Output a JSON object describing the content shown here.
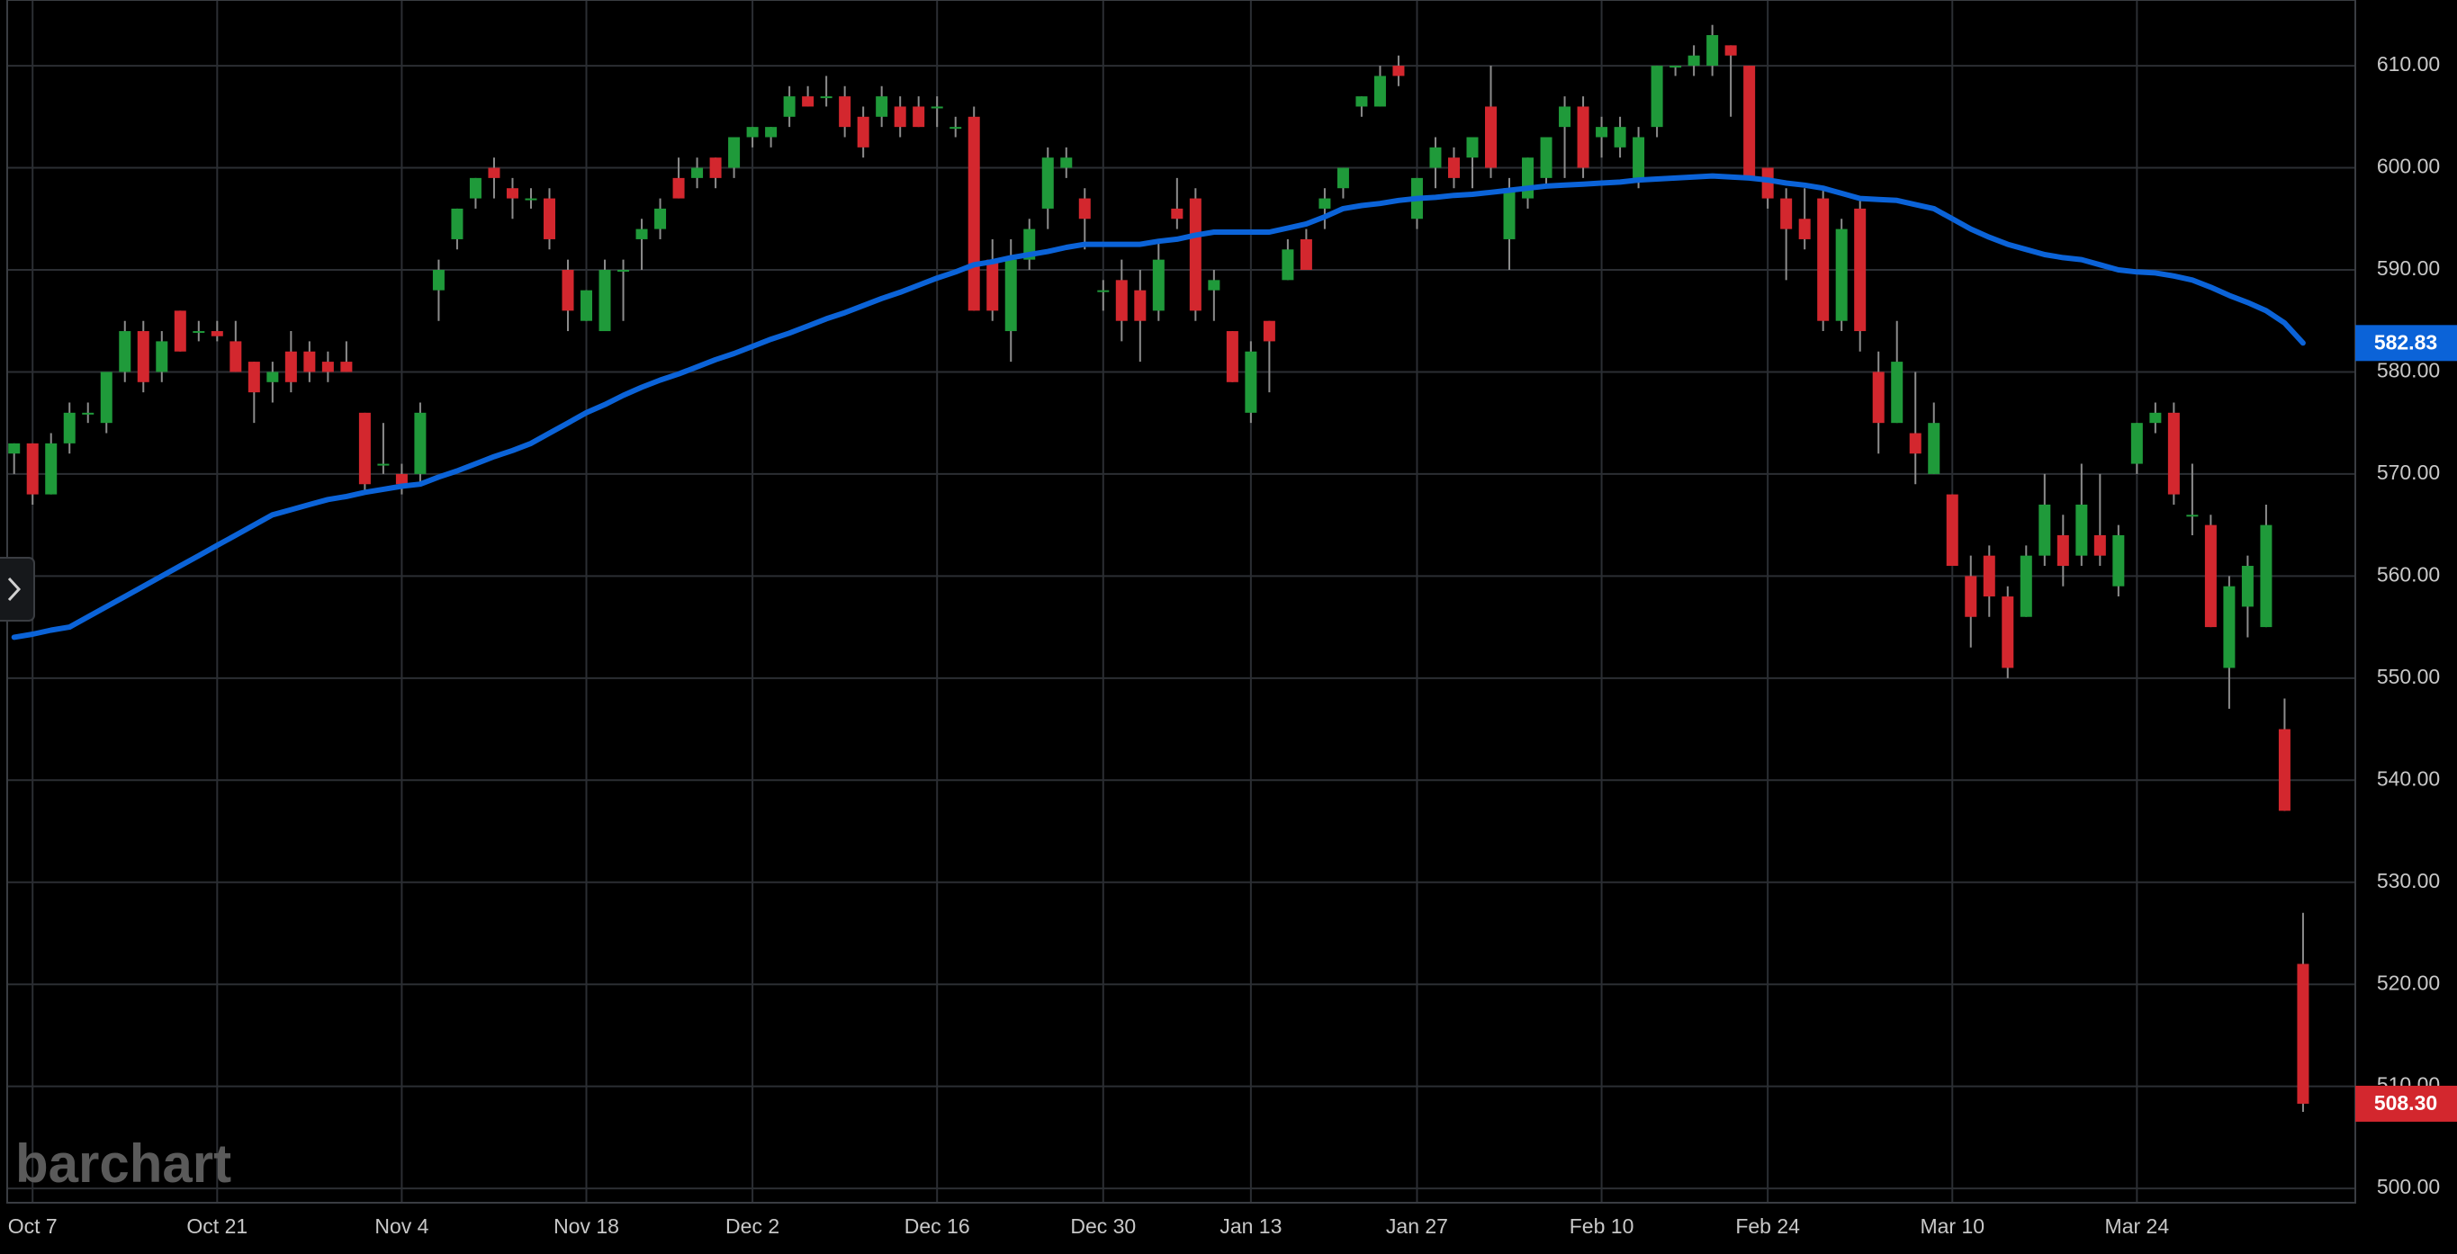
{
  "chart_data": {
    "type": "candlestick",
    "watermark": "barchart",
    "categories": [
      null,
      "Oct 7",
      null,
      null,
      null,
      null,
      null,
      null,
      null,
      null,
      null,
      "Oct 21",
      null,
      null,
      null,
      null,
      null,
      null,
      null,
      null,
      null,
      "Nov 4",
      null,
      null,
      null,
      null,
      null,
      null,
      null,
      null,
      null,
      "Nov 18",
      null,
      null,
      null,
      null,
      null,
      null,
      null,
      null,
      "Dec 2",
      null,
      null,
      null,
      null,
      null,
      null,
      null,
      null,
      null,
      "Dec 16",
      null,
      null,
      null,
      null,
      null,
      null,
      null,
      null,
      "Dec 30",
      null,
      null,
      null,
      null,
      null,
      null,
      null,
      "Jan 13",
      null,
      null,
      null,
      null,
      null,
      null,
      null,
      null,
      "Jan 27",
      null,
      null,
      null,
      null,
      null,
      null,
      null,
      null,
      null,
      "Feb 10",
      null,
      null,
      null,
      null,
      null,
      null,
      null,
      null,
      "Feb 24",
      null,
      null,
      null,
      null,
      null,
      null,
      null,
      null,
      null,
      "Mar 10",
      null,
      null,
      null,
      null,
      null,
      null,
      null,
      null,
      null,
      "Mar 24",
      null,
      null,
      null,
      null,
      null,
      null,
      null,
      null,
      null
    ],
    "ohlc": {
      "open": [
        572,
        573,
        568,
        573,
        576,
        575,
        580,
        584,
        580,
        586,
        584,
        584,
        583,
        581,
        579,
        582,
        582,
        581,
        581,
        576,
        571,
        570,
        570,
        588,
        593,
        597,
        600,
        598,
        597,
        597,
        590,
        585,
        584,
        590,
        593,
        594,
        599,
        599,
        601,
        600,
        603,
        603,
        605,
        607,
        607,
        607,
        605,
        605,
        606,
        606,
        606,
        604,
        605,
        591,
        584,
        591,
        596,
        600,
        597,
        588,
        589,
        588,
        586,
        596,
        597,
        588,
        584,
        576,
        585,
        589,
        593,
        596,
        598,
        606,
        606,
        610,
        595,
        600,
        601,
        601,
        606,
        593,
        597,
        599,
        604,
        606,
        603,
        602,
        599,
        604,
        610,
        610,
        610,
        612,
        610,
        600,
        597,
        595,
        597,
        585,
        596,
        580,
        575,
        574,
        570,
        568,
        560,
        562,
        558,
        556,
        562,
        564,
        562,
        564,
        559,
        571,
        575,
        576,
        566,
        565,
        551,
        557,
        555,
        545,
        522
      ],
      "high": [
        573,
        573,
        574,
        577,
        577,
        580,
        585,
        585,
        584,
        586,
        585,
        585,
        585,
        581,
        581,
        584,
        583,
        582,
        583,
        576,
        575,
        571,
        577,
        591,
        596,
        599,
        601,
        599,
        598,
        598,
        591,
        588,
        591,
        591,
        595,
        597,
        601,
        601,
        601,
        603,
        604,
        604,
        608,
        608,
        609,
        608,
        606,
        608,
        607,
        607,
        607,
        605,
        606,
        593,
        593,
        595,
        602,
        602,
        598,
        589,
        591,
        590,
        593,
        599,
        598,
        590,
        584,
        583,
        585,
        593,
        594,
        598,
        600,
        607,
        610,
        611,
        599,
        603,
        602,
        603,
        610,
        599,
        601,
        603,
        607,
        607,
        605,
        605,
        604,
        610,
        610,
        612,
        614,
        612,
        610,
        600,
        598,
        598,
        598,
        595,
        597,
        582,
        585,
        580,
        577,
        568,
        562,
        563,
        559,
        563,
        570,
        566,
        571,
        570,
        565,
        575,
        577,
        577,
        571,
        566,
        560,
        562,
        567,
        548,
        527
      ],
      "low": [
        570,
        567,
        568,
        572,
        575,
        574,
        579,
        578,
        579,
        582,
        583,
        583,
        580,
        575,
        577,
        578,
        579,
        579,
        580,
        568,
        570,
        568,
        569,
        585,
        592,
        596,
        597,
        595,
        596,
        592,
        584,
        585,
        584,
        585,
        590,
        593,
        597,
        598,
        598,
        599,
        602,
        602,
        604,
        606,
        606,
        603,
        601,
        604,
        603,
        604,
        604,
        603,
        586,
        585,
        581,
        590,
        594,
        599,
        592,
        586,
        583,
        581,
        585,
        594,
        585,
        585,
        579,
        575,
        578,
        589,
        590,
        594,
        597,
        605,
        606,
        608,
        594,
        598,
        598,
        598,
        599,
        590,
        596,
        598,
        599,
        599,
        601,
        601,
        598,
        603,
        609,
        609,
        609,
        605,
        599,
        596,
        589,
        592,
        584,
        584,
        582,
        572,
        575,
        569,
        570,
        561,
        553,
        556,
        550,
        556,
        561,
        559,
        561,
        561,
        558,
        570,
        574,
        567,
        564,
        555,
        547,
        554,
        555,
        537,
        507.5
      ],
      "close": [
        573,
        568,
        573,
        576,
        576,
        580,
        584,
        579,
        583,
        582,
        584,
        583.5,
        580,
        578,
        580,
        579,
        580,
        580,
        580,
        569,
        571,
        569,
        576,
        590,
        596,
        599,
        599,
        597,
        597,
        593,
        586,
        588,
        590,
        590,
        594,
        596,
        597,
        600,
        599,
        603,
        604,
        604,
        607,
        606,
        607,
        604,
        602,
        607,
        604,
        604,
        606,
        604,
        586,
        586,
        591,
        594,
        601,
        601,
        595,
        588,
        585,
        585,
        591,
        595,
        586,
        589,
        579,
        582,
        583,
        592,
        590,
        597,
        600,
        607,
        609,
        609,
        599,
        602,
        599,
        603,
        600,
        598,
        601,
        603,
        606,
        600,
        604,
        604,
        603,
        610,
        610,
        611,
        613,
        611,
        599,
        597,
        594,
        593,
        585,
        594,
        584,
        575,
        581,
        572,
        575,
        561,
        556,
        558,
        551,
        562,
        567,
        561,
        567,
        562,
        564,
        575,
        576,
        568,
        566,
        555,
        559,
        561,
        565,
        537,
        508.3
      ]
    },
    "up_color": "#1f9a3a",
    "down_color": "#d3272e",
    "wick_color": "#8c8c8c",
    "moving_average": {
      "color": "#0b63d8",
      "values": [
        554,
        554.3,
        554.7,
        555,
        556,
        557,
        558,
        559,
        560,
        561,
        562,
        563,
        564,
        565,
        566,
        566.5,
        567,
        567.5,
        567.8,
        568.2,
        568.5,
        568.8,
        569,
        569.7,
        570.3,
        571,
        571.7,
        572.3,
        573,
        574,
        575,
        576,
        576.8,
        577.7,
        578.5,
        579.2,
        579.8,
        580.5,
        581.2,
        581.8,
        582.5,
        583.2,
        583.8,
        584.5,
        585.2,
        585.8,
        586.5,
        587.2,
        587.8,
        588.5,
        589.2,
        589.8,
        590.5,
        590.8,
        591.2,
        591.5,
        591.8,
        592.2,
        592.5,
        592.5,
        592.5,
        592.5,
        592.8,
        593,
        593.4,
        593.7,
        593.7,
        593.7,
        593.7,
        594.1,
        594.5,
        595.2,
        596,
        596.3,
        596.5,
        596.8,
        597,
        597.1,
        597.3,
        597.4,
        597.6,
        597.8,
        598,
        598.2,
        598.3,
        598.4,
        598.5,
        598.6,
        598.8,
        598.9,
        599,
        599.1,
        599.2,
        599.1,
        599,
        598.8,
        598.5,
        598.3,
        598,
        597.5,
        597,
        596.9,
        596.8,
        596.4,
        596,
        595,
        594,
        593.2,
        592.5,
        592,
        591.5,
        591.2,
        591,
        590.5,
        590,
        589.8,
        589.7,
        589.4,
        589,
        588.3,
        587.5,
        586.8,
        586,
        584.8,
        582.83
      ]
    },
    "price_tags": [
      {
        "value": 582.83,
        "label": "582.83",
        "color": "#0b63d8"
      },
      {
        "value": 508.3,
        "label": "508.30",
        "color": "#d3272e"
      }
    ],
    "ylim": [
      498.6,
      616.44
    ],
    "yticks": [
      {
        "value": 500,
        "label": "500.00"
      },
      {
        "value": 510,
        "label": "510.00"
      },
      {
        "value": 520,
        "label": "520.00"
      },
      {
        "value": 530,
        "label": "530.00"
      },
      {
        "value": 540,
        "label": "540.00"
      },
      {
        "value": 550,
        "label": "550.00"
      },
      {
        "value": 560,
        "label": "560.00"
      },
      {
        "value": 570,
        "label": "570.00"
      },
      {
        "value": 580,
        "label": "580.00"
      },
      {
        "value": 590,
        "label": "590.00"
      },
      {
        "value": 600,
        "label": "600.00"
      },
      {
        "value": 610,
        "label": "610.00"
      }
    ],
    "grid": true
  }
}
